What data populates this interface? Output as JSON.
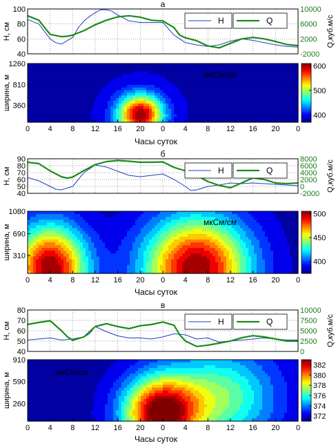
{
  "chart_data": [
    {
      "type": "line",
      "panel_label": "а",
      "xlabel": "",
      "ylabel_left": "H, см",
      "ylabel_right": "Q,куб.м/с",
      "x_ticks": [
        "0",
        "4",
        "8",
        "12",
        "16",
        "20",
        "0",
        "4",
        "8",
        "12",
        "16",
        "20",
        "0"
      ],
      "x_range": [
        0,
        48
      ],
      "ylim_left": [
        40,
        100
      ],
      "yticks_left": [
        40,
        60,
        80,
        100
      ],
      "ylim_right": [
        -2000,
        10000
      ],
      "yticks_right": [
        -2000,
        2000,
        6000,
        10000
      ],
      "grid": true,
      "legend_placement": "top-right",
      "series": [
        {
          "name": "H",
          "axis": "left",
          "color": "#1f3fbf",
          "x": [
            0,
            2,
            4,
            5,
            6,
            8,
            9,
            10,
            11,
            12,
            13,
            14,
            15,
            16,
            18,
            20,
            22,
            24,
            26,
            28,
            30,
            32,
            34,
            36,
            38,
            40,
            42,
            44,
            46,
            48
          ],
          "values": [
            86,
            80,
            60,
            55,
            53,
            62,
            75,
            84,
            90,
            95,
            99,
            99,
            97,
            92,
            84,
            82,
            82,
            82,
            65,
            55,
            52,
            50,
            52,
            57,
            60,
            58,
            55,
            52,
            50,
            49
          ]
        },
        {
          "name": "Q",
          "axis": "right",
          "color": "#1a8a1a",
          "x": [
            0,
            2,
            4,
            6,
            7,
            8,
            10,
            12,
            14,
            16,
            18,
            20,
            22,
            24,
            26,
            27,
            28,
            30,
            32,
            34,
            36,
            38,
            40,
            42,
            44,
            46,
            48
          ],
          "values": [
            8200,
            7000,
            3200,
            2600,
            2700,
            3000,
            4200,
            5800,
            7000,
            7900,
            8200,
            7800,
            7000,
            6800,
            5000,
            3000,
            2300,
            1500,
            100,
            -400,
            800,
            2000,
            2400,
            2000,
            1300,
            500,
            200
          ]
        }
      ]
    },
    {
      "type": "heatmap",
      "ylabel": "ширина, м",
      "xlabel": "Часы суток",
      "x_ticks": [
        "0",
        "4",
        "8",
        "12",
        "16",
        "20",
        "0",
        "4",
        "8",
        "12",
        "16",
        "20",
        "0"
      ],
      "x_range": [
        0,
        48
      ],
      "yticks": [
        360,
        810,
        1260
      ],
      "ylim": [
        0,
        1260
      ],
      "unit_label": "мкСм/см",
      "colorbar_ticks": [
        400,
        500,
        600
      ],
      "colorbar_range": [
        370,
        610
      ],
      "hotspots": [
        {
          "x": 20,
          "y": 160,
          "peak": 610,
          "sx": 2.8,
          "sy": 300
        }
      ],
      "base_value": 385
    },
    {
      "type": "line",
      "panel_label": "б",
      "ylabel_left": "H, см",
      "ylabel_right": "Q,куб.м/с",
      "x_ticks": [
        "0",
        "4",
        "8",
        "12",
        "16",
        "20",
        "0",
        "4",
        "8",
        "12",
        "16",
        "20",
        "0"
      ],
      "x_range": [
        0,
        48
      ],
      "ylim_left": [
        40,
        90
      ],
      "yticks_left": [
        40,
        50,
        60,
        70,
        80,
        90
      ],
      "ylim_right": [
        -2000,
        8000
      ],
      "yticks_right": [
        -2000,
        0,
        2000,
        4000,
        6000,
        8000
      ],
      "grid": true,
      "legend_placement": "top-right",
      "series": [
        {
          "name": "H",
          "axis": "left",
          "color": "#1f3fbf",
          "x": [
            0,
            2,
            4,
            5,
            6,
            8,
            10,
            12,
            14,
            16,
            18,
            20,
            22,
            24,
            26,
            28,
            29,
            30,
            32,
            34,
            36,
            38,
            40,
            42,
            44,
            46,
            48
          ],
          "values": [
            63,
            58,
            50,
            46,
            45,
            50,
            70,
            81,
            78,
            72,
            66,
            64,
            66,
            68,
            60,
            50,
            44,
            45,
            50,
            52,
            55,
            54,
            55,
            54,
            53,
            52,
            51
          ]
        },
        {
          "name": "Q",
          "axis": "right",
          "color": "#1a8a1a",
          "x": [
            0,
            2,
            4,
            6,
            7,
            8,
            10,
            12,
            14,
            16,
            18,
            20,
            22,
            24,
            26,
            28,
            30,
            32,
            34,
            36,
            38,
            40,
            42,
            44,
            46,
            48
          ],
          "values": [
            7000,
            6600,
            4500,
            2800,
            2400,
            2700,
            4600,
            6300,
            7200,
            7500,
            7300,
            7000,
            7000,
            7100,
            5500,
            4500,
            3200,
            1400,
            300,
            -400,
            1000,
            2500,
            2000,
            1000,
            800,
            1000
          ]
        }
      ]
    },
    {
      "type": "heatmap",
      "ylabel": "ширина, м",
      "xlabel": "Часы суток",
      "x_ticks": [
        "0",
        "4",
        "8",
        "12",
        "16",
        "20",
        "0",
        "4",
        "8",
        "12",
        "16",
        "20",
        "0"
      ],
      "x_range": [
        0,
        48
      ],
      "yticks": [
        310,
        690,
        1080
      ],
      "ylim": [
        0,
        1080
      ],
      "unit_label": "мкСм/см",
      "colorbar_ticks": [
        400,
        450,
        500
      ],
      "colorbar_range": [
        375,
        505
      ],
      "hotspots": [
        {
          "x": 4,
          "y": 90,
          "peak": 505,
          "sx": 4.5,
          "sy": 520
        },
        {
          "x": 30,
          "y": 90,
          "peak": 505,
          "sx": 6.5,
          "sy": 620
        }
      ],
      "base_value": 380
    },
    {
      "type": "line",
      "panel_label": "в",
      "ylabel_left": "H, см",
      "ylabel_right": "Q,куб.м/с",
      "x_ticks": [
        "0",
        "4",
        "8",
        "12",
        "16",
        "20",
        "0",
        "4",
        "8",
        "12",
        "16",
        "20",
        "0"
      ],
      "x_range": [
        0,
        48
      ],
      "ylim_left": [
        40,
        80
      ],
      "yticks_left": [
        40,
        50,
        60,
        70,
        80
      ],
      "ylim_right": [
        0,
        10000
      ],
      "yticks_right": [
        0,
        2500,
        5000,
        7500,
        10000
      ],
      "grid": true,
      "legend_placement": "top-right",
      "series": [
        {
          "name": "H",
          "axis": "left",
          "color": "#1f3fbf",
          "x": [
            0,
            2,
            4,
            6,
            8,
            10,
            11,
            12,
            14,
            16,
            18,
            20,
            22,
            24,
            26,
            28,
            30,
            32,
            34,
            36,
            38,
            40,
            42,
            44,
            46,
            48
          ],
          "values": [
            51,
            52,
            53,
            51,
            52,
            54,
            57,
            64,
            59,
            55,
            53,
            53,
            52,
            54,
            57,
            56,
            52,
            53,
            49,
            50,
            51,
            52,
            53,
            52,
            51,
            51
          ]
        },
        {
          "name": "Q",
          "axis": "right",
          "color": "#1a8a1a",
          "x": [
            0,
            2,
            4,
            6,
            7,
            8,
            10,
            12,
            14,
            16,
            18,
            20,
            22,
            24,
            26,
            27,
            28,
            30,
            32,
            34,
            36,
            38,
            40,
            42,
            44,
            46,
            48
          ],
          "values": [
            6500,
            7000,
            7400,
            5000,
            3600,
            2700,
            3500,
            6000,
            6700,
            6000,
            5500,
            6200,
            6500,
            7100,
            6300,
            4000,
            2500,
            1200,
            1500,
            2000,
            2500,
            3300,
            3800,
            3500,
            3000,
            2500,
            2500
          ]
        }
      ]
    },
    {
      "type": "heatmap",
      "ylabel": "ширина, м",
      "xlabel": "Часы суток",
      "x_ticks": [
        "0",
        "4",
        "8",
        "12",
        "16",
        "20",
        "0",
        "4",
        "8",
        "12",
        "16",
        "20",
        "0"
      ],
      "x_range": [
        0,
        48
      ],
      "yticks": [
        260,
        590,
        910
      ],
      "ylim": [
        0,
        910
      ],
      "unit_label": "мкСм/см",
      "colorbar_ticks": [
        372,
        374,
        376,
        378,
        380,
        382
      ],
      "colorbar_range": [
        371,
        383
      ],
      "hotspots": [
        {
          "x": 23.5,
          "y": 120,
          "peak": 383,
          "sx": 4.5,
          "sy": 360
        },
        {
          "x": 34,
          "y": 350,
          "peak": 377,
          "sx": 7,
          "sy": 500
        }
      ],
      "base_value": 371.5
    }
  ]
}
